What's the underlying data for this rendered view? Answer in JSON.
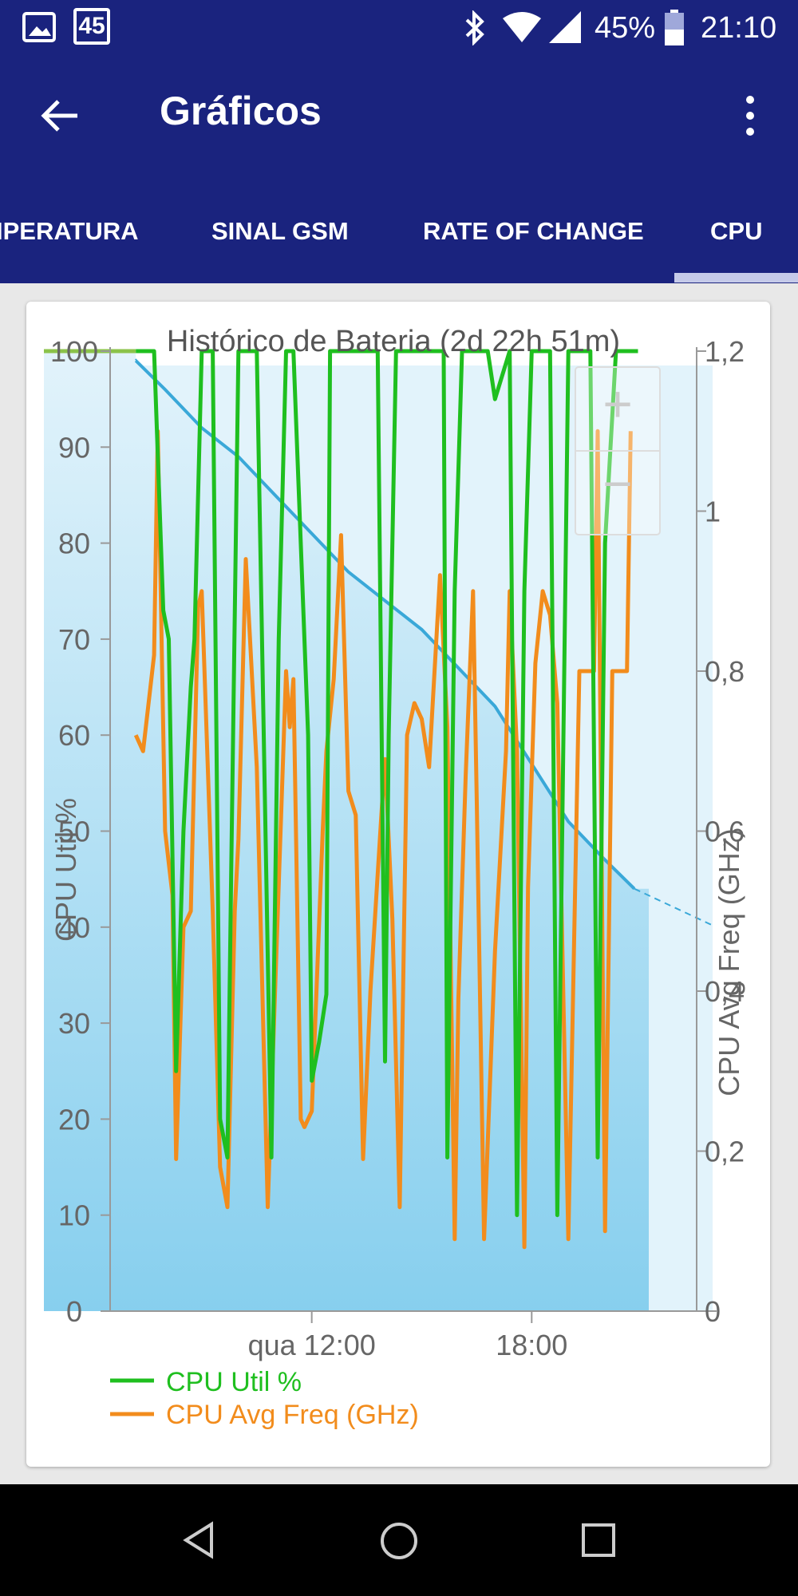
{
  "status_bar": {
    "notification_badge": "45",
    "battery_percent": "45%",
    "time": "21:10",
    "icons": [
      "image-icon",
      "calendar-icon",
      "bluetooth-icon",
      "wifi-icon",
      "signal-icon",
      "battery-icon"
    ]
  },
  "app_bar": {
    "title": "Gráficos",
    "back_icon": "arrow-back-icon",
    "menu_icon": "more-vert-icon"
  },
  "tabs": [
    {
      "label": "IPERATURA"
    },
    {
      "label": "SINAL GSM"
    },
    {
      "label": "RATE OF CHANGE"
    },
    {
      "label": "CPU",
      "selected": true
    }
  ],
  "zoom": {
    "in_label": "+",
    "out_label": "−"
  },
  "chart_data": {
    "type": "line",
    "title": "Histórico de Bateria (2d 22h 51m)",
    "ylabel": "CPU Util %",
    "y2label": "CPU Avg Freq (GHz)",
    "ylim": [
      0,
      100
    ],
    "y2lim": [
      0,
      1.2
    ],
    "yticks": [
      "0",
      "10",
      "20",
      "30",
      "40",
      "50",
      "60",
      "70",
      "80",
      "90",
      "100"
    ],
    "y2ticks": [
      "0",
      "0,2",
      "0,4",
      "0,6",
      "0,8",
      "1",
      "1,2"
    ],
    "xticks": [
      "qua 12:00",
      "18:00"
    ],
    "legend": {
      "position": "bottom-left"
    },
    "colors": {
      "cpu_util": "#1fbf1f",
      "cpu_freq": "#f28c1c",
      "battery_line": "#3aa8d8",
      "battery_fill_top": "#e2f3fb",
      "battery_fill_bottom": "#87cfee",
      "battery_full": "#8bc34a"
    },
    "x_hours_range": [
      6.5,
      22.5
    ],
    "battery_series": {
      "x_hours": [
        7.2,
        8.0,
        9.0,
        10.0,
        11.0,
        12.0,
        13.0,
        14.0,
        15.0,
        16.0,
        17.0,
        18.0,
        19.0,
        20.0,
        20.8
      ],
      "percent": [
        99,
        96,
        92,
        89,
        85,
        81,
        77,
        74,
        71,
        67,
        63,
        57,
        51,
        47,
        44
      ]
    },
    "series": [
      {
        "name": "CPU Util %",
        "axis": "left",
        "x_hours": [
          7.2,
          7.7,
          7.95,
          8.1,
          8.3,
          8.5,
          8.7,
          8.8,
          9.0,
          9.3,
          9.5,
          9.7,
          9.8,
          10.0,
          10.5,
          10.9,
          11.1,
          11.3,
          11.5,
          11.9,
          12.0,
          12.2,
          12.4,
          12.5,
          12.8,
          13.0,
          13.8,
          14.0,
          14.1,
          14.3,
          14.5,
          14.7,
          15.0,
          15.6,
          15.7,
          15.9,
          16.1,
          16.3,
          16.5,
          16.8,
          17.0,
          17.4,
          17.6,
          17.8,
          18.0,
          18.3,
          18.5,
          18.7,
          19.0,
          19.4,
          19.6,
          19.8,
          20.0,
          20.3,
          20.5,
          20.8,
          20.9
        ],
        "values": [
          100,
          100,
          73,
          70,
          25,
          50,
          65,
          70,
          100,
          100,
          20,
          16,
          45,
          100,
          100,
          16,
          70,
          100,
          100,
          60,
          24,
          28,
          33,
          100,
          100,
          100,
          100,
          26,
          60,
          100,
          100,
          100,
          100,
          100,
          16,
          75,
          100,
          100,
          100,
          100,
          95,
          100,
          10,
          75,
          100,
          100,
          100,
          10,
          100,
          100,
          100,
          16,
          80,
          100,
          100,
          100,
          100
        ]
      },
      {
        "name": "CPU Avg Freq (GHz)",
        "axis": "right",
        "x_hours": [
          7.2,
          7.4,
          7.7,
          7.8,
          8.0,
          8.2,
          8.3,
          8.5,
          8.7,
          8.9,
          9.0,
          9.3,
          9.5,
          9.7,
          9.9,
          10.0,
          10.2,
          10.5,
          10.8,
          11.0,
          11.3,
          11.4,
          11.5,
          11.7,
          11.8,
          12.0,
          12.3,
          12.4,
          12.6,
          12.8,
          13.0,
          13.2,
          13.4,
          13.6,
          13.9,
          14.0,
          14.2,
          14.4,
          14.6,
          14.8,
          15.0,
          15.2,
          15.5,
          15.7,
          15.9,
          16.0,
          16.2,
          16.4,
          16.5,
          16.7,
          17.0,
          17.3,
          17.4,
          17.6,
          17.8,
          17.9,
          18.1,
          18.3,
          18.5,
          18.7,
          19.0,
          19.3,
          19.5,
          19.7,
          19.8,
          20.0,
          20.2,
          20.4,
          20.6,
          20.7
        ],
        "values": [
          0.72,
          0.7,
          0.82,
          1.1,
          0.6,
          0.52,
          0.19,
          0.48,
          0.5,
          0.88,
          0.9,
          0.5,
          0.18,
          0.13,
          0.5,
          0.59,
          0.94,
          0.68,
          0.13,
          0.4,
          0.8,
          0.73,
          0.79,
          0.24,
          0.23,
          0.25,
          0.6,
          0.7,
          0.79,
          0.97,
          0.65,
          0.62,
          0.19,
          0.4,
          0.62,
          0.69,
          0.49,
          0.13,
          0.72,
          0.76,
          0.74,
          0.68,
          0.92,
          0.73,
          0.09,
          0.39,
          0.67,
          0.9,
          0.64,
          0.09,
          0.45,
          0.7,
          0.9,
          0.7,
          0.08,
          0.53,
          0.81,
          0.9,
          0.87,
          0.76,
          0.09,
          0.8,
          0.8,
          0.8,
          1.1,
          0.1,
          0.8,
          0.8,
          0.8,
          1.1
        ]
      }
    ]
  }
}
